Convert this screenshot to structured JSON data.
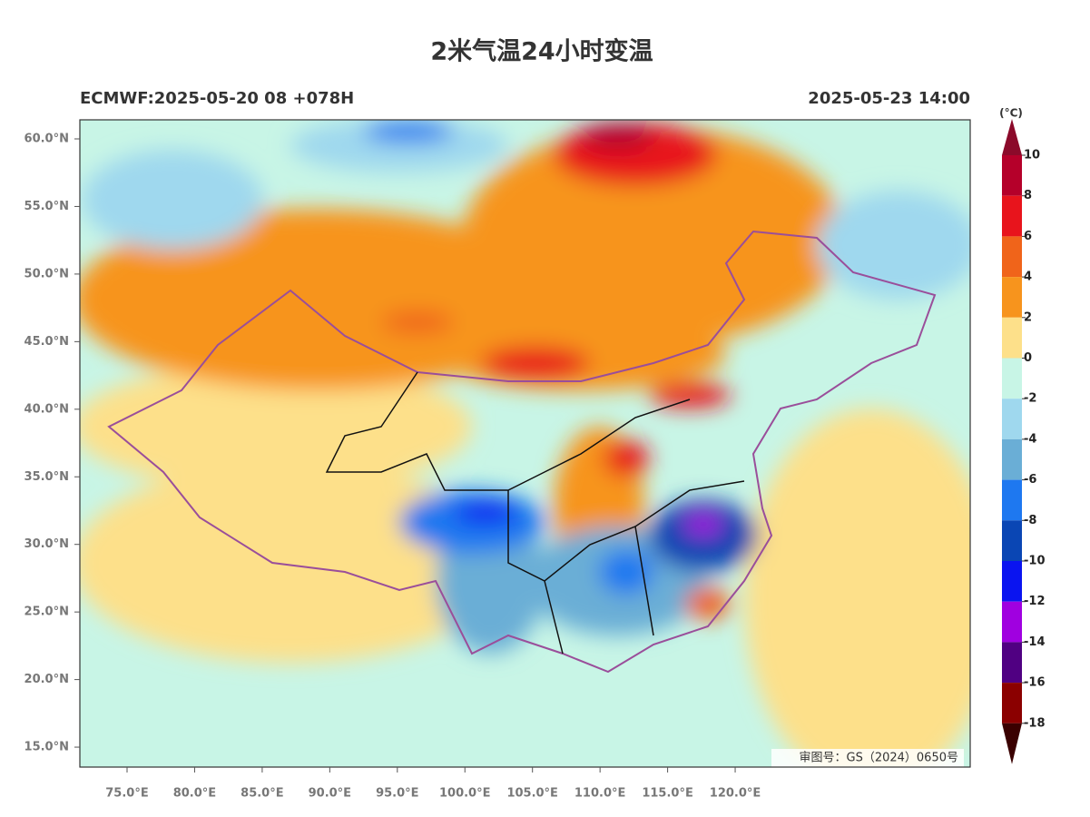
{
  "map": {
    "title": "2米气温24小时变温",
    "subtitle_left": "ECMWF:2025-05-20 08 +078H",
    "subtitle_right": "2025-05-23 14:00",
    "lat_ticks": [
      {
        "value": 60,
        "label": "60.0°N"
      },
      {
        "value": 55,
        "label": "55.0°N"
      },
      {
        "value": 50,
        "label": "50.0°N"
      },
      {
        "value": 45,
        "label": "45.0°N"
      },
      {
        "value": 40,
        "label": "40.0°N"
      },
      {
        "value": 35,
        "label": "35.0°N"
      },
      {
        "value": 30,
        "label": "30.0°N"
      },
      {
        "value": 25,
        "label": "25.0°N"
      },
      {
        "value": 20,
        "label": "20.0°N"
      },
      {
        "value": 15,
        "label": "15.0°N"
      }
    ],
    "lon_ticks": [
      {
        "value": 75,
        "label": "75.0°E"
      },
      {
        "value": 80,
        "label": "80.0°E"
      },
      {
        "value": 85,
        "label": "85.0°E"
      },
      {
        "value": 90,
        "label": "90.0°E"
      },
      {
        "value": 95,
        "label": "95.0°E"
      },
      {
        "value": 100,
        "label": "100.0°E"
      },
      {
        "value": 105,
        "label": "105.0°E"
      },
      {
        "value": 110,
        "label": "110.0°E"
      },
      {
        "value": 115,
        "label": "115.0°E"
      },
      {
        "value": 120,
        "label": "120.0°E"
      }
    ],
    "colorbar": {
      "unit": "(°C)",
      "ticks": [
        10,
        8,
        6,
        4,
        2,
        0,
        -2,
        -4,
        -6,
        -8,
        -10,
        -12,
        -14,
        -16,
        -18
      ],
      "colors": [
        "#b5002a",
        "#e8141c",
        "#f0641a",
        "#f7941d",
        "#fde08a",
        "#c8f5e6",
        "#9fd8ee",
        "#6aaed6",
        "#1e78f0",
        "#0a46b4",
        "#0a14f0",
        "#a000e0",
        "#500082",
        "#8b0000"
      ],
      "extend_high_color": "#8b0a2a",
      "extend_low_color": "#3a0000"
    },
    "credit": "审图号：GS（2024）0650号"
  }
}
